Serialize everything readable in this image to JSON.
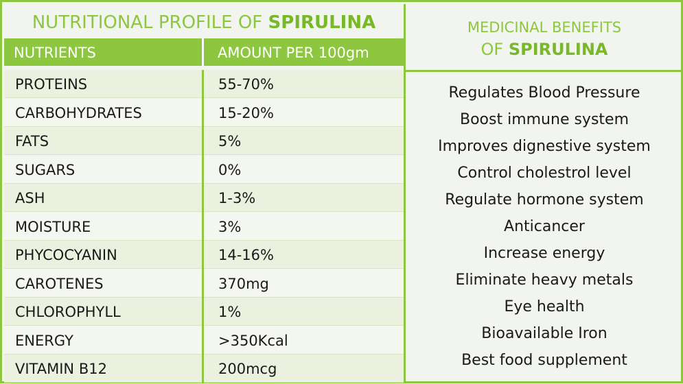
{
  "left_panel": {
    "title_prefix": "NUTRITIONAL PROFILE OF ",
    "title_highlight": "SPIRULINA",
    "headers": [
      "NUTRIENTS",
      "AMOUNT PER 100gm"
    ],
    "rows": [
      {
        "nutrient": "PROTEINS",
        "amount": "55-70%"
      },
      {
        "nutrient": "CARBOHYDRATES",
        "amount": "15-20%"
      },
      {
        "nutrient": "FATS",
        "amount": "5%"
      },
      {
        "nutrient": "SUGARS",
        "amount": "0%"
      },
      {
        "nutrient": "ASH",
        "amount": "1-3%"
      },
      {
        "nutrient": "MOISTURE",
        "amount": "3%"
      },
      {
        "nutrient": "PHYCOCYANIN",
        "amount": "14-16%"
      },
      {
        "nutrient": "CAROTENES",
        "amount": "370mg"
      },
      {
        "nutrient": "CHLOROPHYLL",
        "amount": "1%"
      },
      {
        "nutrient": "ENERGY",
        "amount": ">350Kcal"
      },
      {
        "nutrient": "VITAMIN B12",
        "amount": "200mcg"
      }
    ]
  },
  "right_panel": {
    "title_line1": "MEDICINAL BENEFITS",
    "title_line2_prefix": "OF ",
    "title_line2_highlight": "SPIRULINA",
    "benefits": [
      "Regulates Blood Pressure",
      "Boost immune system",
      "Improves dignestive system",
      "Control cholestrol level",
      "Regulate hormone system",
      "Anticancer",
      "Increase energy",
      "Eliminate heavy metals",
      "Eye health",
      "Bioavailable Iron",
      "Best food supplement"
    ]
  },
  "colors": {
    "accent_green": "#8dc63f",
    "highlight_green": "#78b82a",
    "row_alt": "#eaf1de",
    "background": "#f2f4ef",
    "text": "#1a1a1a"
  }
}
